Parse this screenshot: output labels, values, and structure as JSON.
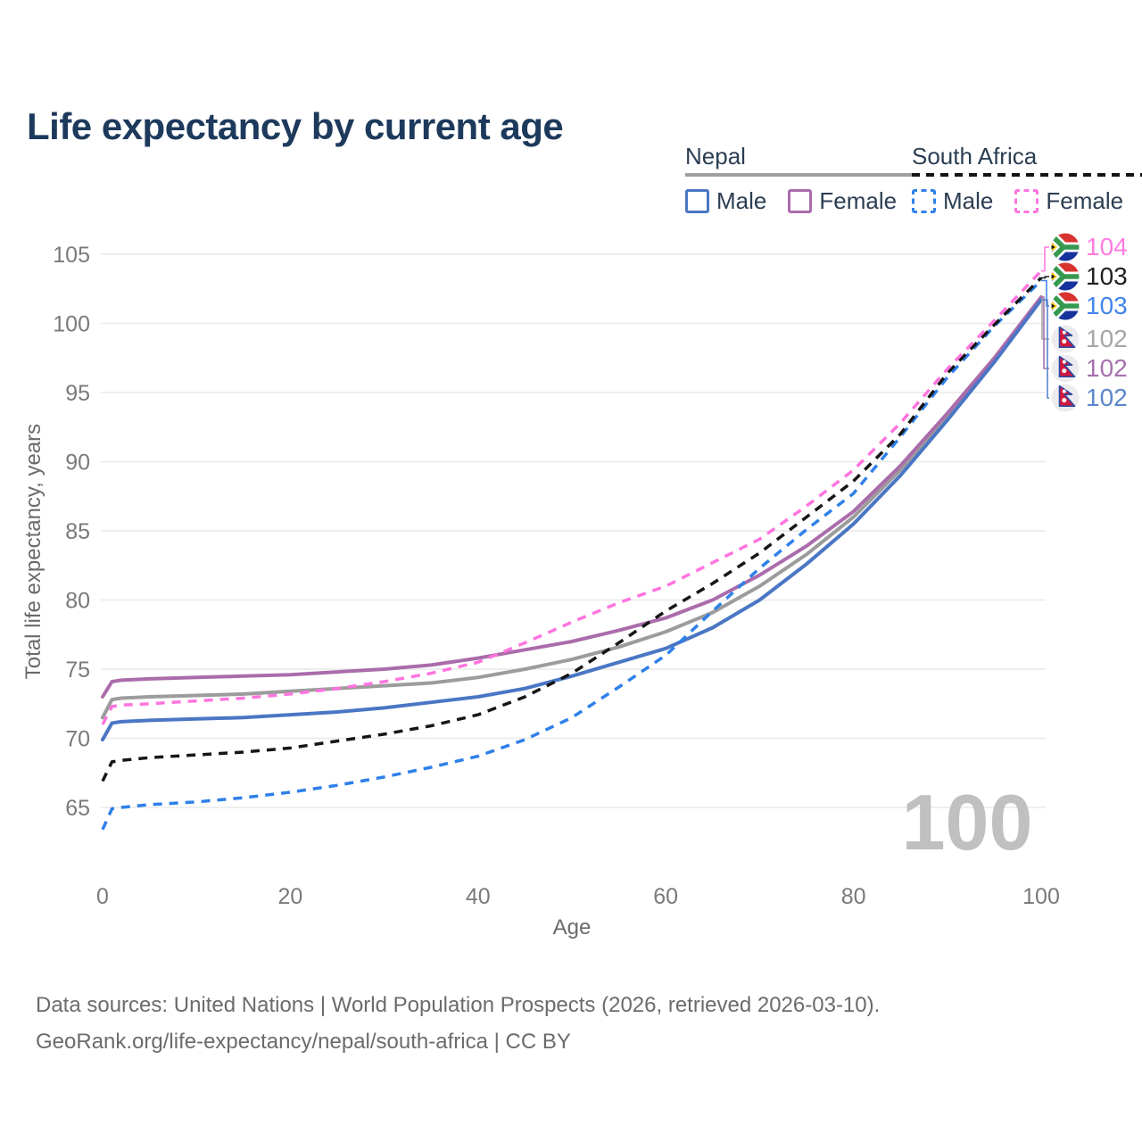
{
  "title": "Life expectancy by current age",
  "watermark": "100",
  "legend": {
    "groups": [
      {
        "label": "Nepal",
        "line_style": "solid",
        "underline_color": "#a0a0a0",
        "items": [
          {
            "label": "Male",
            "color": "#4a76c4"
          },
          {
            "label": "Female",
            "color": "#aa6cab"
          }
        ]
      },
      {
        "label": "South Africa",
        "line_style": "dashed",
        "underline_color": "#141414",
        "items": [
          {
            "label": "Male",
            "color": "#2f80e9"
          },
          {
            "label": "Female",
            "color": "#ff74df"
          }
        ]
      }
    ]
  },
  "chart_data": {
    "type": "line",
    "title": "Life expectancy by current age",
    "xlabel": "Age",
    "ylabel": "Total life expectancy, years",
    "xlim": [
      0,
      100
    ],
    "ylim": [
      63,
      105.5
    ],
    "xticks": [
      0,
      20,
      40,
      60,
      80,
      100
    ],
    "yticks": [
      65,
      70,
      75,
      80,
      85,
      90,
      95,
      100,
      105
    ],
    "grid": "horizontal",
    "legend_position": "top-right",
    "x": [
      0,
      1,
      2,
      5,
      10,
      15,
      20,
      25,
      30,
      35,
      40,
      45,
      50,
      55,
      60,
      65,
      70,
      75,
      80,
      85,
      90,
      95,
      100
    ],
    "series": [
      {
        "id": "nepal-total",
        "name": "Nepal Total",
        "country": "Nepal",
        "sex": "Both",
        "color": "#9c9c9c",
        "dashed": false,
        "values": [
          71.5,
          72.8,
          72.9,
          73.0,
          73.1,
          73.2,
          73.4,
          73.6,
          73.8,
          74.0,
          74.4,
          75.0,
          75.7,
          76.6,
          77.7,
          79.1,
          81.0,
          83.3,
          86.0,
          89.4,
          93.3,
          97.4,
          101.8
        ]
      },
      {
        "id": "nepal-female",
        "name": "Nepal Female",
        "country": "Nepal",
        "sex": "Female",
        "color": "#aa6cab",
        "dashed": false,
        "values": [
          73.0,
          74.1,
          74.2,
          74.3,
          74.4,
          74.5,
          74.6,
          74.8,
          75.0,
          75.3,
          75.8,
          76.4,
          77.0,
          77.8,
          78.7,
          80.0,
          81.8,
          83.9,
          86.4,
          89.7,
          93.5,
          97.5,
          101.9
        ]
      },
      {
        "id": "nepal-male",
        "name": "Nepal Male",
        "country": "Nepal",
        "sex": "Male",
        "color": "#4a76c4",
        "dashed": false,
        "values": [
          69.9,
          71.1,
          71.2,
          71.3,
          71.4,
          71.5,
          71.7,
          71.9,
          72.2,
          72.6,
          73.0,
          73.6,
          74.5,
          75.5,
          76.5,
          78.0,
          80.0,
          82.6,
          85.5,
          89.0,
          93.0,
          97.2,
          101.7
        ]
      },
      {
        "id": "sa-male",
        "name": "South Africa Male",
        "country": "South Africa",
        "sex": "Male",
        "color": "#2f80e9",
        "dashed": true,
        "values": [
          63.4,
          64.9,
          65.0,
          65.2,
          65.4,
          65.7,
          66.1,
          66.6,
          67.2,
          67.9,
          68.7,
          69.9,
          71.5,
          73.7,
          76.0,
          79.2,
          82.3,
          85.1,
          87.7,
          91.8,
          96.1,
          99.8,
          103.1
        ]
      },
      {
        "id": "sa-total",
        "name": "South Africa Total",
        "country": "South Africa",
        "sex": "Both",
        "color": "#161616",
        "dashed": true,
        "values": [
          66.9,
          68.3,
          68.4,
          68.6,
          68.8,
          69.0,
          69.3,
          69.8,
          70.3,
          70.9,
          71.7,
          73.0,
          74.7,
          76.9,
          79.2,
          81.2,
          83.4,
          86.0,
          88.6,
          92.0,
          96.4,
          99.9,
          103.3
        ]
      },
      {
        "id": "sa-female",
        "name": "South Africa Female",
        "country": "South Africa",
        "sex": "Female",
        "color": "#ff74df",
        "dashed": true,
        "values": [
          71.0,
          72.3,
          72.4,
          72.5,
          72.7,
          72.9,
          73.2,
          73.6,
          74.1,
          74.7,
          75.5,
          76.9,
          78.4,
          79.8,
          81.0,
          82.7,
          84.4,
          86.8,
          89.4,
          92.8,
          96.7,
          100.2,
          103.8
        ]
      }
    ]
  },
  "end_labels": [
    {
      "value": "104",
      "color": "#ff7ce1",
      "flag": "south-africa-flag-icon",
      "series": "sa-female"
    },
    {
      "value": "103",
      "color": "#1f1f1f",
      "flag": "south-africa-flag-icon",
      "series": "sa-total"
    },
    {
      "value": "103",
      "color": "#4285ec",
      "flag": "south-africa-flag-icon",
      "series": "sa-male"
    },
    {
      "value": "102",
      "color": "#a6a6a6",
      "flag": "nepal-flag-icon",
      "series": "nepal-total"
    },
    {
      "value": "102",
      "color": "#a671ae",
      "flag": "nepal-flag-icon",
      "series": "nepal-female"
    },
    {
      "value": "102",
      "color": "#5c87cb",
      "flag": "nepal-flag-icon",
      "series": "nepal-male"
    }
  ],
  "footer": {
    "line1": "Data sources: United Nations | World Population Prospects (2026, retrieved 2026-03-10).",
    "line2": "GeoRank.org/life-expectancy/nepal/south-africa | CC BY"
  }
}
